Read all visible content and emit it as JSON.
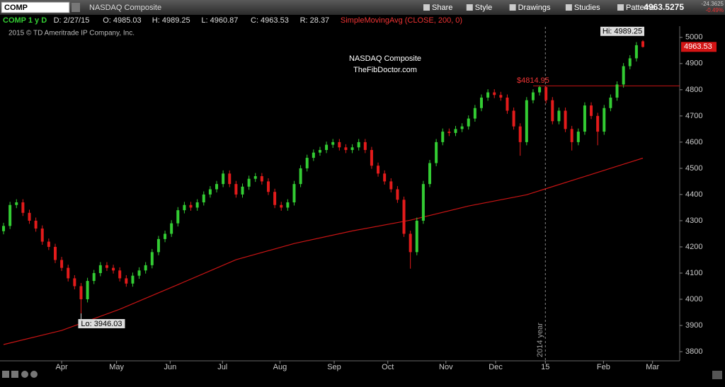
{
  "ui": {
    "symbol": "COMP",
    "symbol_name": "NASDAQ Composite",
    "menu": [
      "Share",
      "Style",
      "Drawings",
      "Studies",
      "Patterns"
    ],
    "last": "4963.5275",
    "change": "-24.3625",
    "change_pct": "-0.49%",
    "info": [
      "COMP 1 y D",
      "D: 2/27/15",
      "O: 4985.03",
      "H: 4989.25",
      "L: 4960.87",
      "C: 4963.53",
      "R: 28.37"
    ],
    "study": "SimpleMovingAvg (CLOSE, 200, 0)",
    "copyright": "2015 © TD Ameritrade IP Company, Inc."
  },
  "chart_data": {
    "type": "candlestick",
    "title": "NASDAQ Composite",
    "subtitle": "TheFibDoctor.com",
    "annotations": {
      "high": "Hi: 4989.25",
      "low": "Lo: 3946.03",
      "level": "$4814.95",
      "divider": "2014 year"
    },
    "level": 4814.95,
    "divider_x": 83.9,
    "up_color": "#33cc33",
    "down_color": "#e31b1b",
    "sma_color": "#c81414",
    "open": [
      4260,
      4280,
      4360,
      4370,
      4330,
      4300,
      4270,
      4220,
      4200,
      4150,
      4120,
      4080,
      4050,
      4000,
      4070,
      4100,
      4130,
      4120,
      4110,
      4080,
      4060,
      4090,
      4110,
      4130,
      4180,
      4230,
      4250,
      4290,
      4340,
      4360,
      4350,
      4370,
      4400,
      4420,
      4440,
      4480,
      4440,
      4400,
      4430,
      4460,
      4470,
      4450,
      4410,
      4360,
      4350,
      4370,
      4440,
      4500,
      4540,
      4560,
      4570,
      4590,
      4600,
      4580,
      4570,
      4580,
      4600,
      4570,
      4510,
      4480,
      4450,
      4420,
      4380,
      4250,
      4180,
      4300,
      4440,
      4520,
      4600,
      4640,
      4635,
      4650,
      4660,
      4690,
      4730,
      4770,
      4790,
      4780,
      4770,
      4720,
      4660,
      4600,
      4760,
      4790,
      4810,
      4760,
      4680,
      4720,
      4650,
      4600,
      4640,
      4740,
      4700,
      4640,
      4730,
      4770,
      4820,
      4890,
      4920,
      4985.03
    ],
    "high": [
      4292,
      4372,
      4382,
      4382,
      4342,
      4312,
      4282,
      4232,
      4212,
      4162,
      4132,
      4092,
      4062,
      4082,
      4112,
      4142,
      4142,
      4132,
      4122,
      4092,
      4102,
      4122,
      4142,
      4192,
      4242,
      4262,
      4302,
      4352,
      4372,
      4372,
      4382,
      4412,
      4432,
      4452,
      4492,
      4492,
      4452,
      4442,
      4472,
      4482,
      4482,
      4462,
      4422,
      4372,
      4382,
      4452,
      4512,
      4552,
      4572,
      4582,
      4602,
      4612,
      4612,
      4592,
      4592,
      4612,
      4612,
      4582,
      4522,
      4492,
      4462,
      4432,
      4392,
      4262,
      4312,
      4452,
      4532,
      4612,
      4652,
      4652,
      4662,
      4672,
      4702,
      4742,
      4782,
      4802,
      4802,
      4792,
      4782,
      4732,
      4672,
      4772,
      4802,
      4814.95,
      4812,
      4772,
      4732,
      4732,
      4662,
      4652,
      4752,
      4752,
      4712,
      4742,
      4782,
      4832,
      4902,
      4932,
      4982,
      4989.25
    ],
    "low": [
      4248,
      4268,
      4348,
      4318,
      4288,
      4258,
      4208,
      4188,
      4138,
      4108,
      4068,
      4038,
      3946.03,
      3988,
      4058,
      4088,
      4108,
      4098,
      4068,
      4048,
      4048,
      4078,
      4098,
      4118,
      4168,
      4218,
      4238,
      4278,
      4328,
      4338,
      4338,
      4358,
      4388,
      4408,
      4428,
      4428,
      4388,
      4388,
      4418,
      4448,
      4438,
      4398,
      4348,
      4338,
      4338,
      4358,
      4428,
      4488,
      4528,
      4548,
      4558,
      4578,
      4568,
      4558,
      4558,
      4568,
      4558,
      4498,
      4468,
      4438,
      4408,
      4368,
      4238,
      4117,
      4168,
      4288,
      4428,
      4508,
      4588,
      4623,
      4623,
      4638,
      4648,
      4678,
      4718,
      4758,
      4768,
      4758,
      4708,
      4648,
      4548,
      4588,
      4748,
      4778,
      4748,
      4668,
      4668,
      4638,
      4568,
      4588,
      4628,
      4688,
      4588,
      4628,
      4718,
      4758,
      4808,
      4878,
      4908,
      4960.87
    ],
    "close": [
      4280,
      4360,
      4370,
      4330,
      4300,
      4270,
      4220,
      4200,
      4150,
      4120,
      4080,
      4050,
      4000,
      4070,
      4100,
      4130,
      4120,
      4110,
      4080,
      4060,
      4090,
      4110,
      4130,
      4180,
      4230,
      4250,
      4290,
      4340,
      4360,
      4350,
      4370,
      4400,
      4420,
      4440,
      4480,
      4440,
      4400,
      4430,
      4460,
      4470,
      4450,
      4410,
      4360,
      4350,
      4370,
      4440,
      4500,
      4540,
      4560,
      4570,
      4590,
      4600,
      4580,
      4570,
      4580,
      4600,
      4570,
      4510,
      4480,
      4450,
      4420,
      4380,
      4250,
      4180,
      4300,
      4440,
      4520,
      4600,
      4640,
      4635,
      4650,
      4660,
      4690,
      4730,
      4770,
      4790,
      4780,
      4770,
      4720,
      4660,
      4600,
      4760,
      4790,
      4810,
      4760,
      4680,
      4720,
      4650,
      4600,
      4640,
      4740,
      4700,
      4640,
      4730,
      4770,
      4820,
      4890,
      4920,
      4970,
      4963.53
    ],
    "sma": {
      "name": "SimpleMovingAvg",
      "x": [
        0,
        9,
        18,
        27,
        36,
        45,
        54,
        63,
        72,
        81,
        90,
        99
      ],
      "values": [
        3827,
        3881,
        3962,
        4056,
        4151,
        4213,
        4261,
        4302,
        4356,
        4399,
        4469,
        4539
      ]
    },
    "xlim": [
      -0.55,
      104.7
    ],
    "xticks": [
      {
        "value": 9.0,
        "label": "Apr"
      },
      {
        "value": 17.5,
        "label": "May"
      },
      {
        "value": 25.8,
        "label": "Jun"
      },
      {
        "value": 33.9,
        "label": "Jul"
      },
      {
        "value": 42.8,
        "label": "Aug"
      },
      {
        "value": 51.2,
        "label": "Sep"
      },
      {
        "value": 59.5,
        "label": "Oct"
      },
      {
        "value": 68.5,
        "label": "Nov"
      },
      {
        "value": 76.2,
        "label": "Dec"
      },
      {
        "value": 83.9,
        "label": "15"
      },
      {
        "value": 92.9,
        "label": "Feb"
      },
      {
        "value": 100.5,
        "label": "Mar"
      }
    ],
    "ylim": [
      3765,
      5040
    ],
    "yticks": [
      3800,
      3900,
      4000,
      4100,
      4200,
      4300,
      4400,
      4500,
      4600,
      4700,
      4800,
      4900,
      5000
    ]
  }
}
